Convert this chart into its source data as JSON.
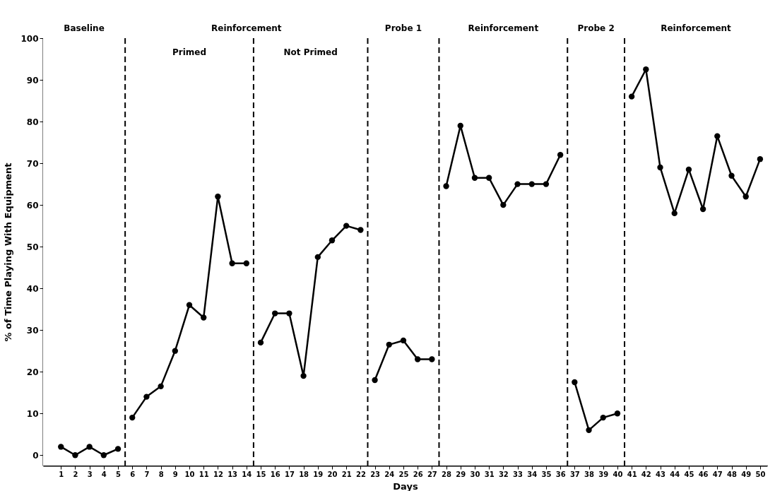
{
  "chart_data": {
    "type": "line",
    "xlabel": "Days",
    "ylabel": "% of Time Playing With Equipment",
    "xlim": [
      -0.25,
      50.5
    ],
    "xticks": [
      1,
      2,
      3,
      4,
      5,
      6,
      7,
      8,
      9,
      10,
      11,
      12,
      13,
      14,
      15,
      16,
      17,
      18,
      19,
      20,
      21,
      22,
      23,
      24,
      25,
      26,
      27,
      28,
      29,
      30,
      31,
      32,
      33,
      34,
      35,
      36,
      37,
      38,
      39,
      40,
      41,
      42,
      43,
      44,
      45,
      46,
      47,
      48,
      49,
      50
    ],
    "ylim": [
      -2.5,
      100
    ],
    "yticks": [
      0,
      10,
      20,
      30,
      40,
      50,
      60,
      70,
      80,
      90,
      100
    ],
    "grid": false,
    "legend": false,
    "marker": "circle",
    "line_style": "solid",
    "series": [
      {
        "color": "#000000",
        "x": [
          1,
          2,
          3,
          4,
          5
        ],
        "values": [
          2,
          0,
          2,
          0,
          1.5
        ]
      },
      {
        "color": "#000000",
        "x": [
          6,
          7,
          8,
          9,
          10,
          11,
          12,
          13,
          14
        ],
        "values": [
          9,
          14,
          16.5,
          25,
          36,
          33,
          62,
          46,
          46
        ]
      },
      {
        "color": "#000000",
        "x": [
          15,
          16,
          17,
          18,
          19,
          20,
          21,
          22
        ],
        "values": [
          27,
          34,
          34,
          19,
          47.5,
          51.5,
          55,
          54
        ]
      },
      {
        "color": "#000000",
        "x": [
          23,
          24,
          25,
          26,
          27
        ],
        "values": [
          18,
          26.5,
          27.5,
          23,
          23
        ]
      },
      {
        "color": "#000000",
        "x": [
          28,
          29,
          30,
          31,
          32,
          33,
          34,
          35,
          36
        ],
        "values": [
          64.5,
          79,
          66.5,
          66.5,
          60,
          65,
          65,
          65,
          72
        ]
      },
      {
        "color": "#000000",
        "x": [
          37,
          38,
          39,
          40
        ],
        "values": [
          17.5,
          6,
          9,
          10
        ]
      },
      {
        "color": "#000000",
        "x": [
          41,
          42,
          43,
          44,
          45,
          46,
          47,
          48,
          49,
          50
        ],
        "values": [
          86,
          92.5,
          69,
          58,
          68.5,
          59,
          76.5,
          67,
          62,
          71
        ]
      }
    ],
    "ref_lines": [
      {
        "axis": "x",
        "value": 5.5,
        "line_style": "dashed"
      },
      {
        "axis": "x",
        "value": 14.5,
        "line_style": "dashed"
      },
      {
        "axis": "x",
        "value": 22.5,
        "line_style": "dashed"
      },
      {
        "axis": "x",
        "value": 27.5,
        "line_style": "dashed"
      },
      {
        "axis": "x",
        "value": 36.5,
        "line_style": "dashed"
      },
      {
        "axis": "x",
        "value": 40.5,
        "line_style": "dashed"
      }
    ],
    "bands": [
      {
        "axis": "x",
        "from": -0.25,
        "to": 5.5,
        "label": "Baseline"
      },
      {
        "axis": "x",
        "from": 5.5,
        "to": 22.5,
        "label": "Reinforcement"
      },
      {
        "axis": "x",
        "from": 22.5,
        "to": 27.5,
        "label": "Probe 1"
      },
      {
        "axis": "x",
        "from": 27.5,
        "to": 36.5,
        "label": "Reinforcement"
      },
      {
        "axis": "x",
        "from": 36.5,
        "to": 40.5,
        "label": "Probe 2"
      },
      {
        "axis": "x",
        "from": 40.5,
        "to": 50.5,
        "label": "Reinforcement"
      }
    ],
    "annotations": [
      "Primed",
      "Not Primed"
    ]
  }
}
